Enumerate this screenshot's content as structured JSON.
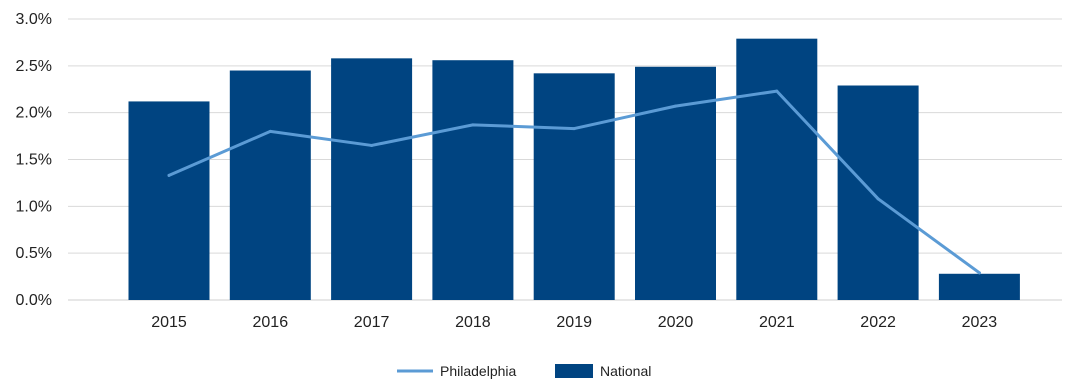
{
  "chart_data": {
    "type": "bar",
    "categories": [
      "2015",
      "2016",
      "2017",
      "2018",
      "2019",
      "2020",
      "2021",
      "2022",
      "2023"
    ],
    "series": [
      {
        "name": "National",
        "type": "bar",
        "values": [
          2.12,
          2.45,
          2.58,
          2.56,
          2.42,
          2.49,
          2.79,
          2.29,
          0.28
        ],
        "color": "#004481"
      },
      {
        "name": "Philadelphia",
        "type": "line",
        "values": [
          1.33,
          1.8,
          1.65,
          1.87,
          1.83,
          2.07,
          2.23,
          1.08,
          0.29
        ],
        "color": "#5b9bd5"
      }
    ],
    "yaxis": {
      "ticks": [
        0.0,
        0.5,
        1.0,
        1.5,
        2.0,
        2.5,
        3.0
      ],
      "tick_labels": [
        "0.0%",
        "0.5%",
        "1.0%",
        "1.5%",
        "2.0%",
        "2.5%",
        "3.0%"
      ]
    },
    "ylim": [
      0,
      3.0
    ],
    "grid": true,
    "legend": {
      "position": "bottom-center",
      "items": [
        {
          "label": "Philadelphia",
          "marker": "line",
          "color": "#5b9bd5"
        },
        {
          "label": "National",
          "marker": "box",
          "color": "#004481"
        }
      ]
    },
    "title": "",
    "xlabel": "",
    "ylabel": ""
  }
}
